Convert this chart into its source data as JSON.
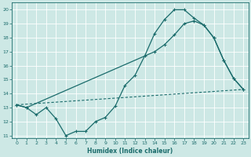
{
  "xlabel": "Humidex (Indice chaleur)",
  "xlim": [
    -0.5,
    23.5
  ],
  "ylim": [
    10.8,
    20.5
  ],
  "yticks": [
    11,
    12,
    13,
    14,
    15,
    16,
    17,
    18,
    19,
    20
  ],
  "xticks": [
    0,
    1,
    2,
    3,
    4,
    5,
    6,
    7,
    8,
    9,
    10,
    11,
    12,
    13,
    14,
    15,
    16,
    17,
    18,
    19,
    20,
    21,
    22,
    23
  ],
  "bg_color": "#cde8e5",
  "grid_color": "#b0d4d0",
  "line_color": "#1a6b6b",
  "line1_x": [
    0,
    1,
    2,
    3,
    4,
    5,
    6,
    7,
    8,
    9,
    10,
    11,
    12,
    13,
    14,
    15,
    16,
    17,
    18,
    19,
    20,
    21,
    22,
    23
  ],
  "line1_y": [
    13.2,
    13.0,
    12.5,
    13.0,
    12.2,
    11.0,
    11.3,
    11.3,
    12.0,
    12.3,
    13.1,
    14.6,
    15.3,
    16.7,
    18.3,
    19.3,
    20.0,
    20.0,
    19.4,
    18.9,
    18.0,
    16.4,
    15.1,
    14.3
  ],
  "line2_x": [
    0,
    1,
    14,
    15,
    16,
    17,
    18,
    19,
    20,
    21,
    22,
    23
  ],
  "line2_y": [
    13.2,
    13.0,
    17.0,
    17.5,
    18.2,
    19.0,
    19.2,
    18.9,
    18.0,
    16.4,
    15.1,
    14.3
  ],
  "line3_x": [
    0,
    23
  ],
  "line3_y": [
    13.2,
    14.3
  ]
}
